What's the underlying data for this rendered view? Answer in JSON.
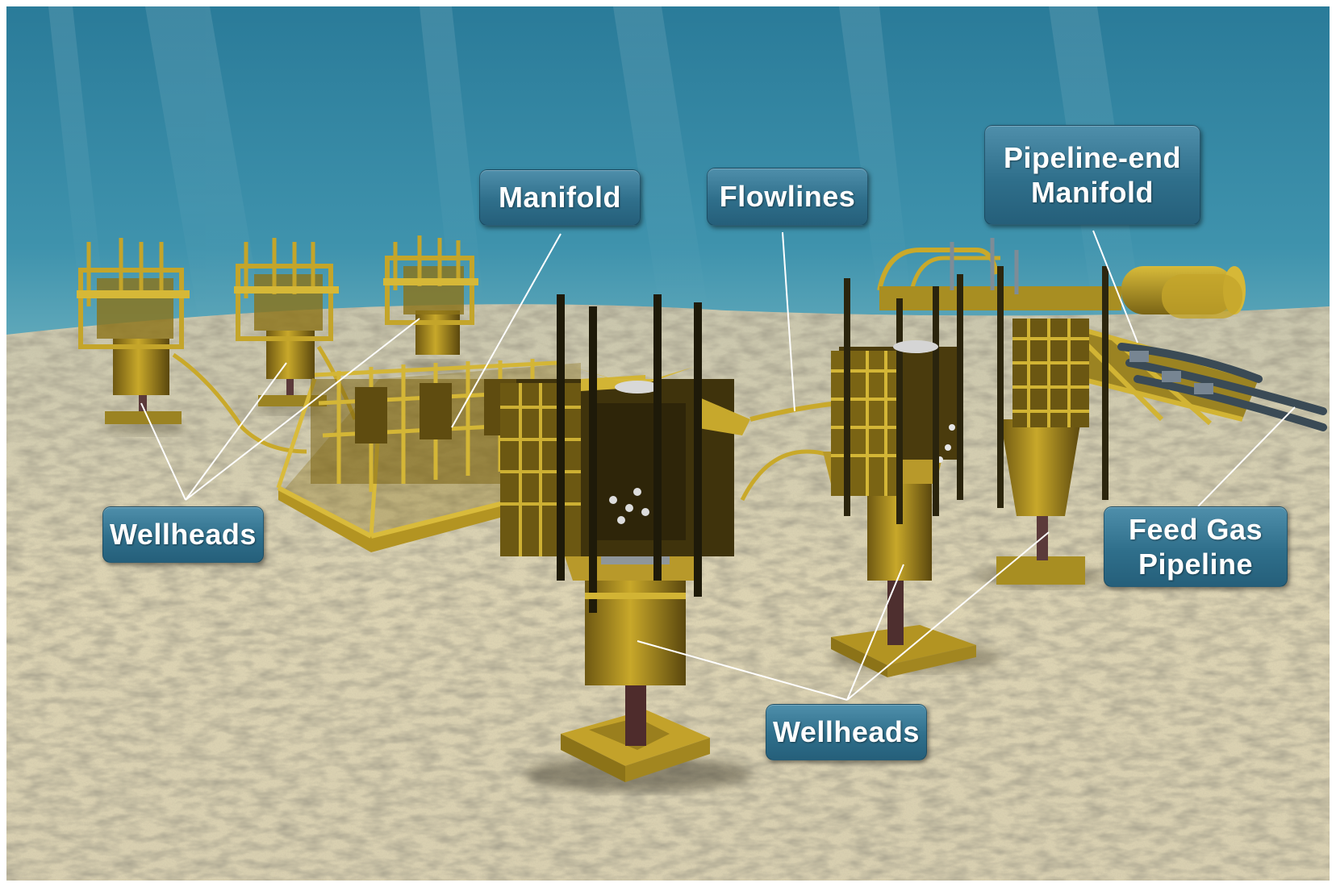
{
  "labels": {
    "manifold": "Manifold",
    "flowlines": "Flowlines",
    "pipeline_end_manifold": [
      "Pipeline-end",
      "Manifold"
    ],
    "wellheads_left": "Wellheads",
    "wellheads_center": "Wellheads",
    "feed_gas_pipeline": [
      "Feed Gas",
      "Pipeline"
    ]
  },
  "colors": {
    "water_top": "#2d7e9c",
    "water_bottom": "#6fb3c2",
    "seabed_light": "#e7dfc0",
    "seabed_dark": "#a79c7b",
    "equipment": "#c9a92a",
    "equipment_dark": "#5c4a10",
    "callout": "#2f6f8b",
    "leader_line": "#ffffff"
  }
}
